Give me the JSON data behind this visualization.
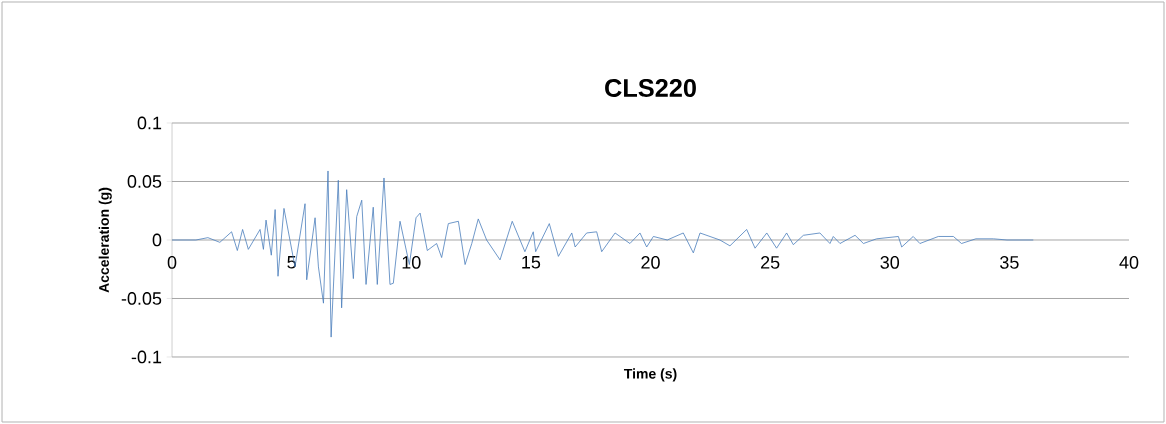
{
  "chart_data": {
    "type": "line",
    "title": "CLS220",
    "xlabel": "Time (s)",
    "ylabel": "Acceleration (g)",
    "xlim": [
      0,
      40
    ],
    "ylim": [
      -0.1,
      0.1
    ],
    "xticks": [
      0,
      5,
      10,
      15,
      20,
      25,
      30,
      35,
      40
    ],
    "yticks": [
      -0.1,
      -0.05,
      0,
      0.05,
      0.1
    ],
    "grid": "y",
    "marker": "none",
    "line_style": "solid",
    "series": [
      {
        "color": "#4a7ebb",
        "x": [
          0,
          1,
          1.5,
          2,
          2.49,
          2.73,
          2.95,
          3.19,
          3.68,
          3.82,
          3.93,
          4.15,
          4.31,
          4.43,
          4.68,
          5.14,
          5.56,
          5.63,
          5.98,
          6.12,
          6.33,
          6.52,
          6.65,
          6.95,
          7.09,
          7.3,
          7.58,
          7.72,
          7.93,
          8.11,
          8.41,
          8.58,
          8.86,
          9.11,
          9.25,
          9.53,
          9.92,
          10.2,
          10.37,
          10.67,
          11.06,
          11.27,
          11.55,
          11.97,
          12.25,
          12.53,
          12.8,
          13.15,
          13.71,
          14.22,
          14.75,
          15.1,
          15.2,
          15.77,
          16.15,
          16.71,
          16.85,
          17.33,
          17.75,
          17.96,
          18.52,
          19.14,
          19.56,
          19.84,
          20.12,
          20.7,
          21.37,
          21.79,
          22.07,
          22.9,
          23.32,
          24.02,
          24.37,
          24.86,
          25.27,
          25.69,
          25.97,
          26.39,
          27.08,
          27.5,
          27.64,
          27.92,
          28.55,
          28.9,
          29.45,
          30.36,
          30.5,
          30.98,
          31.26,
          32.03,
          32.66,
          33.0,
          33.6,
          34.33,
          34.9,
          36.0
        ],
        "values": [
          0,
          0,
          0.002,
          -0.002,
          0.007,
          -0.009,
          0.009,
          -0.008,
          0.009,
          -0.008,
          0.017,
          -0.013,
          0.026,
          -0.031,
          0.027,
          -0.023,
          0.031,
          -0.034,
          0.019,
          -0.023,
          -0.054,
          0.059,
          -0.083,
          0.051,
          -0.058,
          0.043,
          -0.033,
          0.02,
          0.034,
          -0.038,
          0.028,
          -0.038,
          0.053,
          -0.038,
          -0.037,
          0.016,
          -0.021,
          0.019,
          0.023,
          -0.009,
          -0.003,
          -0.015,
          0.014,
          0.016,
          -0.021,
          -0.003,
          0.018,
          0,
          -0.017,
          0.016,
          -0.01,
          0.007,
          -0.01,
          0.014,
          -0.014,
          0.006,
          -0.006,
          0.006,
          0.007,
          -0.01,
          0.006,
          -0.003,
          0.006,
          -0.006,
          0.003,
          0,
          0.006,
          -0.011,
          0.006,
          0,
          -0.005,
          0.009,
          -0.007,
          0.006,
          -0.007,
          0.006,
          -0.004,
          0.004,
          0.006,
          -0.003,
          0.003,
          -0.003,
          0.004,
          -0.003,
          0.001,
          0.003,
          -0.006,
          0.003,
          -0.003,
          0.003,
          0.003,
          -0.003,
          0.001,
          0.001,
          0,
          0
        ]
      }
    ]
  }
}
